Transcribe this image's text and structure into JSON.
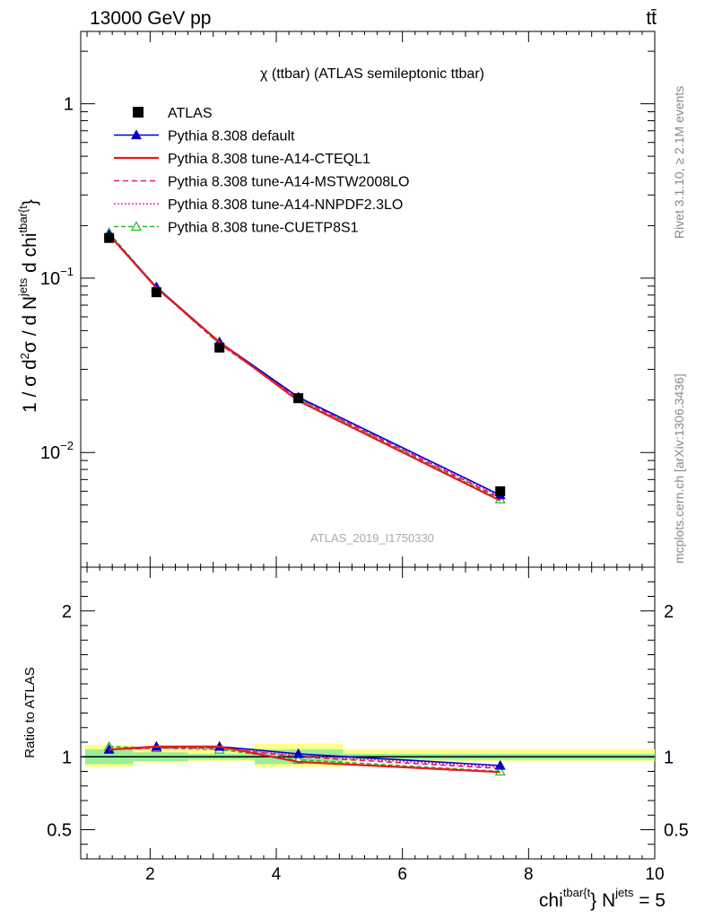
{
  "header": {
    "energy_label": "13000 GeV pp",
    "process_label": "tt̄",
    "plot_title": "χ (ttbar) (ATLAS semileptonic ttbar)",
    "analysis_id": "ATLAS_2019_I1750330",
    "rivet_label": "Rivet 3.1.10, ≥ 2.1M events",
    "mcplots_label": "mcplots.cern.ch [arXiv:1306.3436]"
  },
  "colors": {
    "data": "#000000",
    "default": "#0000cc",
    "cteql1": "#e41a1c",
    "mstw": "#ee1177",
    "nnpdf": "#ee22cc",
    "cuetp8s1": "#22bb22",
    "band_green": "#99ee99",
    "band_yellow": "#ffff88"
  },
  "chart_data": {
    "type": "line",
    "title": "χ (ttbar) (ATLAS semileptonic ttbar)",
    "xlabel": "chi^{tbar{t}} N^{jets} = 5",
    "ylabel_main": "1 / σ d²σ / d N^{jets} d chi^{tbar{t}}",
    "ylabel_ratio": "Ratio to ATLAS",
    "xlim": [
      0.9,
      10.0
    ],
    "ylim_main": [
      0.0022,
      2.6
    ],
    "yscale_main": "log",
    "ylim_ratio": [
      0.3,
      2.3
    ],
    "legend_position": "top-left",
    "x_ticks": [
      "2",
      "4",
      "6",
      "8",
      "10"
    ],
    "y_ticks_main": [
      {
        "value": 1,
        "base": "1",
        "exp": ""
      },
      {
        "value": 0.1,
        "base": "10",
        "exp": "−1"
      },
      {
        "value": 0.01,
        "base": "10",
        "exp": "−2"
      }
    ],
    "y_ticks_ratio": [
      "0.5",
      "1",
      "2"
    ],
    "data": {
      "name": "ATLAS",
      "x": [
        1.35,
        2.1,
        3.1,
        4.35,
        7.55
      ],
      "y": [
        0.17,
        0.083,
        0.04,
        0.0205,
        0.006
      ],
      "bin_edges": [
        0.97,
        1.73,
        3.66,
        5.06,
        10.0
      ],
      "band_green": [
        [
          0.95,
          1.05
        ],
        [
          0.97,
          1.03
        ],
        [
          0.98,
          1.02
        ],
        [
          0.95,
          1.05
        ],
        [
          0.98,
          1.02
        ]
      ],
      "band_yellow": [
        [
          0.93,
          1.08
        ],
        [
          0.96,
          1.07
        ],
        [
          0.97,
          1.06
        ],
        [
          0.93,
          1.09
        ],
        [
          0.97,
          1.05
        ]
      ]
    },
    "series": [
      {
        "name": "Pythia 8.308 default",
        "key": "default",
        "x": [
          1.35,
          2.1,
          3.1,
          4.35,
          7.55
        ],
        "y": [
          0.178,
          0.089,
          0.043,
          0.0208,
          0.0057
        ],
        "ratio": [
          1.05,
          1.07,
          1.07,
          1.02,
          0.94
        ],
        "marker": "triangle-filled",
        "dash": ""
      },
      {
        "name": "Pythia 8.308 tune-A14-CTEQL1",
        "key": "cteql1",
        "x": [
          1.35,
          2.1,
          3.1,
          4.35,
          7.55
        ],
        "y": [
          0.177,
          0.088,
          0.043,
          0.0198,
          0.0053
        ],
        "ratio": [
          1.05,
          1.07,
          1.07,
          0.965,
          0.895
        ],
        "marker": "none",
        "dash": ""
      },
      {
        "name": "Pythia 8.308 tune-A14-MSTW2008LO",
        "key": "mstw",
        "x": [
          1.35,
          2.1,
          3.1,
          4.35,
          7.55
        ],
        "y": [
          0.177,
          0.088,
          0.042,
          0.0204,
          0.0055
        ],
        "ratio": [
          1.05,
          1.06,
          1.06,
          1.0,
          0.92
        ],
        "marker": "none",
        "dash": "6,4"
      },
      {
        "name": "Pythia 8.308 tune-A14-NNPDF2.3LO",
        "key": "nnpdf",
        "x": [
          1.35,
          2.1,
          3.1,
          4.35,
          7.55
        ],
        "y": [
          0.177,
          0.088,
          0.043,
          0.0206,
          0.0056
        ],
        "ratio": [
          1.05,
          1.06,
          1.06,
          1.01,
          0.93
        ],
        "marker": "none",
        "dash": "2,2"
      },
      {
        "name": "Pythia 8.308 tune-CUETP8S1",
        "key": "cuetp8s1",
        "x": [
          1.35,
          2.1,
          3.1,
          4.35,
          7.55
        ],
        "y": [
          0.182,
          0.088,
          0.042,
          0.0203,
          0.0054
        ],
        "ratio": [
          1.07,
          1.06,
          1.05,
          0.98,
          0.9
        ],
        "marker": "triangle-open",
        "dash": "5,3"
      }
    ]
  }
}
